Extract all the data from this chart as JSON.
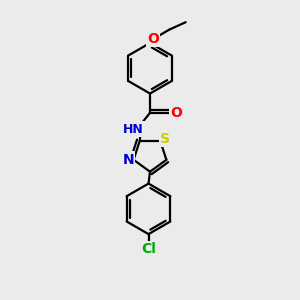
{
  "background_color": "#ebebeb",
  "bond_color": "#000000",
  "atom_colors": {
    "O": "#ff0000",
    "N": "#0000cc",
    "S": "#cccc00",
    "Cl": "#00aa00",
    "H": "#777777"
  },
  "line_width": 1.6,
  "font_size": 9,
  "fig_size": [
    3.0,
    3.0
  ],
  "dpi": 100
}
